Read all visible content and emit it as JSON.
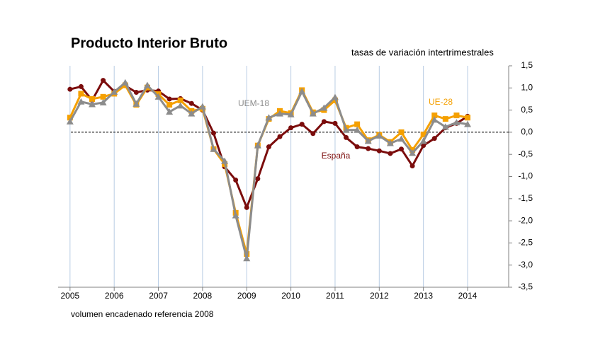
{
  "chart_data": {
    "type": "line",
    "title": "Producto Interior Bruto",
    "subtitle": "tasas de variación intertrimestrales",
    "note": "volumen encadenado referencia 2008",
    "x": [
      2005,
      2005.25,
      2005.5,
      2005.75,
      2006,
      2006.25,
      2006.5,
      2006.75,
      2007,
      2007.25,
      2007.5,
      2007.75,
      2008,
      2008.25,
      2008.5,
      2008.75,
      2009,
      2009.25,
      2009.5,
      2009.75,
      2010,
      2010.25,
      2010.5,
      2010.75,
      2011,
      2011.25,
      2011.5,
      2011.75,
      2012,
      2012.25,
      2012.5,
      2012.75,
      2013,
      2013.25,
      2013.5,
      2013.75,
      2014
    ],
    "xlim": [
      2004.73,
      2014.93
    ],
    "xticks": [
      2005,
      2006,
      2007,
      2008,
      2009,
      2010,
      2011,
      2012,
      2013,
      2014
    ],
    "ylim": [
      -3.5,
      1.5
    ],
    "yticks": [
      {
        "value": -3.5,
        "label": "-3,5"
      },
      {
        "value": -3,
        "label": "-3,0"
      },
      {
        "value": -2.5,
        "label": "-2,5"
      },
      {
        "value": -2,
        "label": "-2,0"
      },
      {
        "value": -1.5,
        "label": "-1,5"
      },
      {
        "value": -1,
        "label": "-1,0"
      },
      {
        "value": -0.5,
        "label": "-0,5"
      },
      {
        "value": 0,
        "label": "0,0"
      },
      {
        "value": 0.5,
        "label": "0,5"
      },
      {
        "value": 1,
        "label": "1,0"
      },
      {
        "value": 1.5,
        "label": "1,5"
      }
    ],
    "series": [
      {
        "name": "España",
        "color": "#7b0c0c",
        "marker": "circle",
        "values": [
          0.97,
          1.03,
          0.72,
          1.17,
          0.92,
          1.05,
          0.9,
          0.95,
          0.93,
          0.75,
          0.76,
          0.65,
          0.5,
          -0.02,
          -0.78,
          -1.08,
          -1.7,
          -1.05,
          -0.33,
          -0.1,
          0.1,
          0.18,
          -0.03,
          0.24,
          0.2,
          -0.12,
          -0.33,
          -0.37,
          -0.42,
          -0.48,
          -0.38,
          -0.76,
          -0.3,
          -0.14,
          0.1,
          0.2,
          0.36
        ]
      },
      {
        "name": "UE-28",
        "color": "#f5a000",
        "marker": "square",
        "values": [
          0.33,
          0.87,
          0.75,
          0.8,
          0.87,
          1.06,
          0.62,
          1.01,
          0.86,
          0.62,
          0.72,
          0.48,
          0.53,
          -0.38,
          -0.72,
          -1.82,
          -2.75,
          -0.3,
          0.3,
          0.48,
          0.43,
          0.95,
          0.45,
          0.5,
          0.72,
          0.1,
          0.18,
          -0.18,
          -0.06,
          -0.22,
          0.0,
          -0.4,
          -0.05,
          0.38,
          0.3,
          0.38,
          0.33
        ]
      },
      {
        "name": "UEM-18",
        "color": "#8c8c8c",
        "marker": "triangle",
        "values": [
          0.24,
          0.69,
          0.63,
          0.67,
          0.91,
          1.12,
          0.64,
          1.06,
          0.8,
          0.46,
          0.6,
          0.42,
          0.58,
          -0.38,
          -0.65,
          -1.88,
          -2.85,
          -0.3,
          0.33,
          0.42,
          0.4,
          0.92,
          0.42,
          0.55,
          0.79,
          0.05,
          0.05,
          -0.2,
          -0.08,
          -0.25,
          -0.15,
          -0.47,
          -0.2,
          0.28,
          0.12,
          0.22,
          0.18
        ]
      }
    ]
  }
}
